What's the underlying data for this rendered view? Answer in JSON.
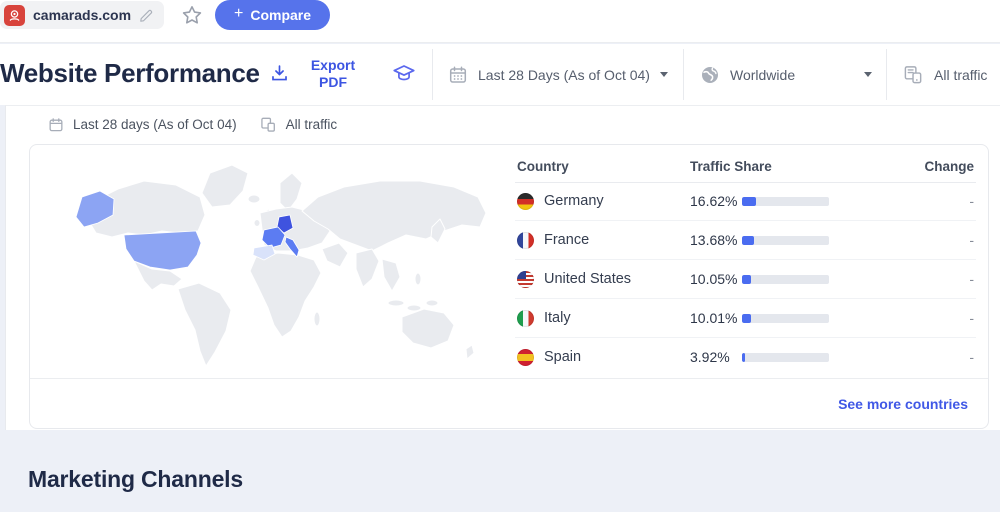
{
  "top_bar": {
    "domain": "camarads.com",
    "compare_plus": "+",
    "compare_label": "Compare"
  },
  "header": {
    "title": "Website Performance",
    "export_line1": "Export",
    "export_line2": "PDF",
    "date_filter": "Last 28 Days (As of Oct 04)",
    "region_filter": "Worldwide",
    "traffic_filter": "All traffic"
  },
  "applied_filters": {
    "date": "Last 28 days (As of Oct 04)",
    "traffic": "All traffic"
  },
  "geo": {
    "columns": {
      "country": "Country",
      "share": "Traffic Share",
      "change": "Change"
    },
    "rows": [
      {
        "country": "Germany",
        "flag": "germany",
        "share": "16.62%",
        "share_pct": 16.62,
        "change": "-"
      },
      {
        "country": "France",
        "flag": "france",
        "share": "13.68%",
        "share_pct": 13.68,
        "change": "-"
      },
      {
        "country": "United States",
        "flag": "united-states",
        "share": "10.05%",
        "share_pct": 10.05,
        "change": "-"
      },
      {
        "country": "Italy",
        "flag": "italy",
        "share": "10.01%",
        "share_pct": 10.01,
        "change": "-"
      },
      {
        "country": "Spain",
        "flag": "spain",
        "share": "3.92%",
        "share_pct": 3.92,
        "change": "-"
      }
    ],
    "see_more": "See more countries"
  },
  "sections": {
    "marketing_channels": "Marketing Channels"
  },
  "icons": {
    "favicon": "webcam-logo",
    "edit": "pencil",
    "favorite": "star-outline",
    "export": "download-tray",
    "learn": "graduation-cap",
    "date": "calendar",
    "region": "globe",
    "traffic": "desktop-and-mobile",
    "dropdown": "chevron-down"
  },
  "colors": {
    "accent_blue": "#5673eb",
    "link_blue": "#3c55e2",
    "bar_fill": "#4a6cf0",
    "bar_track": "#e4e7ed",
    "map_land": "#e9ebef",
    "map_highlight_strong": "#3f53df",
    "map_highlight": "#8ca4f3",
    "map_highlight_light": "#d9e2fa",
    "page_bg": "#edf0f7"
  }
}
